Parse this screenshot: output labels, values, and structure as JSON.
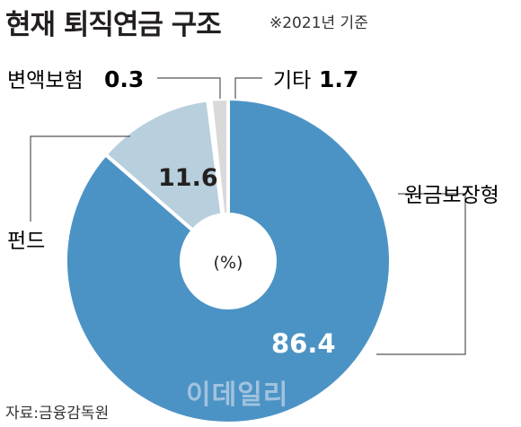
{
  "header": {
    "title": "현재 퇴직연금 구조",
    "subtitle": "※2021년 기준"
  },
  "footer": {
    "source": "자료:금융감독원",
    "watermark": "이데일리"
  },
  "chart_data": {
    "type": "pie",
    "title": "현재 퇴직연금 구조",
    "subtitle": "※2021년 기준",
    "unit_label": "(%)",
    "slices": [
      {
        "label": "원금보장형",
        "value": 86.4,
        "color": "#4c93c5"
      },
      {
        "label": "펀드",
        "value": 11.6,
        "color": "#b8cfdd"
      },
      {
        "label": "변액보험",
        "value": 0.3,
        "color": "#d9d9d9"
      },
      {
        "label": "기타",
        "value": 1.7,
        "color": "#d9d9d9"
      }
    ],
    "source": "자료:금융감독원"
  }
}
